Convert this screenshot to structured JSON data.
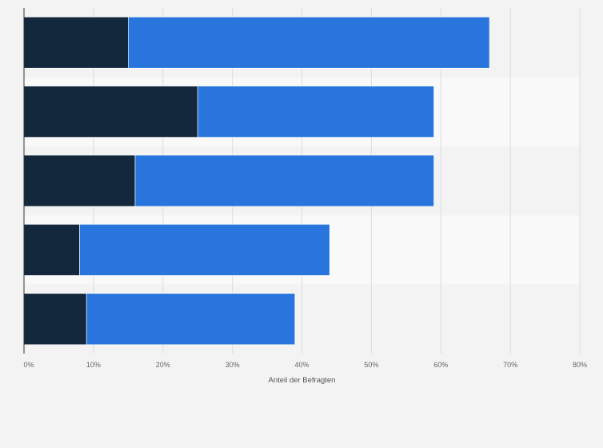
{
  "chart_data": {
    "type": "bar",
    "orientation": "horizontal",
    "stacked": true,
    "categories": [
      "",
      "",
      "",
      "",
      ""
    ],
    "series": [
      {
        "values": [
          15,
          25,
          16,
          8,
          9
        ],
        "color": "#13273d"
      },
      {
        "values": [
          52,
          34,
          43,
          36,
          30
        ],
        "color": "#2876dd"
      }
    ],
    "xlabel": "Anteil der Befragten",
    "ylabel": "",
    "xlim": [
      0,
      80
    ],
    "xticks": [
      0,
      10,
      20,
      30,
      40,
      50,
      60,
      70,
      80
    ],
    "xtick_labels": [
      "0%",
      "10%",
      "20%",
      "30%",
      "40%",
      "50%",
      "60%",
      "70%",
      "80%"
    ],
    "grid": true,
    "legend": "none"
  },
  "colors": {
    "background": "#f3f3f3",
    "band_alt": "#f9f9f9",
    "gridline": "#dcdcdc",
    "axis": "#333333"
  }
}
